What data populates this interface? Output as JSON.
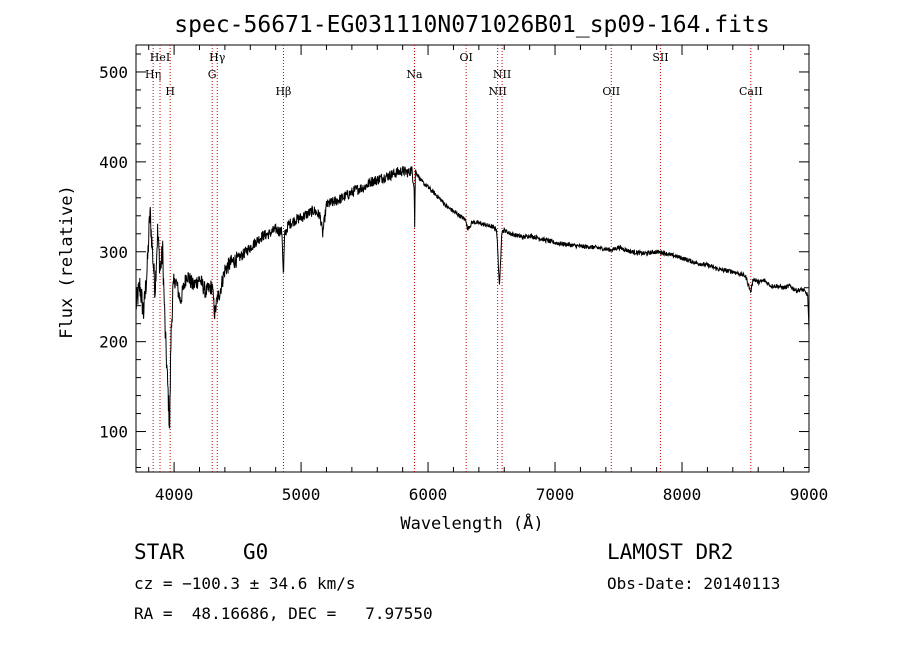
{
  "chart_data": {
    "type": "line",
    "title": "spec-56671-EG031110N071026B01_sp09-164.fits",
    "xlabel": "Wavelength (Å)",
    "ylabel": "Flux (relative)",
    "xlim": [
      3700,
      9000
    ],
    "ylim": [
      55,
      530
    ],
    "x_ticks": [
      4000,
      5000,
      6000,
      7000,
      8000,
      9000
    ],
    "y_ticks": [
      100,
      200,
      300,
      400,
      500
    ],
    "grid": false,
    "line_color": "#000000",
    "marker_color": "#cc0000",
    "series": [
      {
        "x": [
          3700,
          3730,
          3760,
          3790,
          3810,
          3830,
          3850,
          3870,
          3890,
          3910,
          3930,
          3950,
          3965,
          3975,
          3990,
          4010,
          4050,
          4100,
          4150,
          4200,
          4250,
          4300,
          4320,
          4340,
          4360,
          4400,
          4450,
          4500,
          4550,
          4600,
          4650,
          4700,
          4750,
          4800,
          4850,
          4861,
          4870,
          4900,
          4950,
          5000,
          5050,
          5100,
          5150,
          5170,
          5200,
          5250,
          5300,
          5350,
          5400,
          5450,
          5500,
          5550,
          5600,
          5650,
          5700,
          5750,
          5800,
          5850,
          5870,
          5890,
          5895,
          5900,
          5920,
          5950,
          6000,
          6050,
          6100,
          6150,
          6200,
          6250,
          6300,
          6310,
          6350,
          6400,
          6450,
          6500,
          6540,
          6563,
          6580,
          6600,
          6650,
          6700,
          6750,
          6800,
          6850,
          6900,
          6950,
          7000,
          7100,
          7200,
          7300,
          7400,
          7450,
          7500,
          7600,
          7700,
          7800,
          7850,
          7900,
          8000,
          8100,
          8200,
          8300,
          8400,
          8500,
          8542,
          8560,
          8600,
          8650,
          8700,
          8750,
          8800,
          8850,
          8900,
          8950,
          8990,
          9000
        ],
        "y": [
          240,
          262,
          232,
          285,
          345,
          300,
          258,
          322,
          280,
          300,
          210,
          150,
          105,
          200,
          255,
          270,
          245,
          275,
          262,
          270,
          255,
          262,
          230,
          248,
          255,
          280,
          288,
          292,
          298,
          305,
          312,
          318,
          320,
          325,
          322,
          270,
          318,
          330,
          335,
          338,
          342,
          346,
          340,
          320,
          352,
          355,
          358,
          362,
          366,
          370,
          372,
          378,
          380,
          383,
          385,
          388,
          390,
          388,
          392,
          375,
          328,
          390,
          385,
          378,
          372,
          365,
          358,
          350,
          345,
          340,
          335,
          325,
          333,
          332,
          330,
          328,
          325,
          260,
          322,
          324,
          320,
          318,
          316,
          318,
          316,
          314,
          312,
          310,
          308,
          306,
          305,
          303,
          302,
          305,
          300,
          298,
          300,
          299,
          297,
          293,
          288,
          285,
          280,
          278,
          273,
          255,
          270,
          266,
          268,
          262,
          262,
          260,
          262,
          257,
          258,
          252,
          210
        ]
      }
    ],
    "lines": [
      {
        "wave": 3835,
        "label": "Hη",
        "row": 2
      },
      {
        "wave": 3889,
        "label": "HeI",
        "row": 1
      },
      {
        "wave": 3969,
        "label": "H",
        "row": 3
      },
      {
        "wave": 4300,
        "label": "G",
        "row": 2
      },
      {
        "wave": 4340,
        "label": "Hγ",
        "row": 1
      },
      {
        "wave": 4861,
        "label": "Hβ",
        "row": 3
      },
      {
        "wave": 5893,
        "label": "Na",
        "row": 2
      },
      {
        "wave": 6300,
        "label": "OI",
        "row": 1
      },
      {
        "wave": 6548,
        "label": "NII",
        "row": 3
      },
      {
        "wave": 6583,
        "label": "NII",
        "row": 2
      },
      {
        "wave": 7443,
        "label": "OII",
        "row": 3
      },
      {
        "wave": 7830,
        "label": "SII",
        "row": 1
      },
      {
        "wave": 8542,
        "label": "CaII",
        "row": 3
      }
    ]
  },
  "info": {
    "class_label": "STAR",
    "subclass": "G0",
    "survey": "LAMOST DR2",
    "cz_text": "cz = −100.3 ± 34.6 km/s",
    "obs_date_text": "Obs-Date: 20140113",
    "radec_text": "RA =  48.16686, DEC =   7.97550"
  }
}
